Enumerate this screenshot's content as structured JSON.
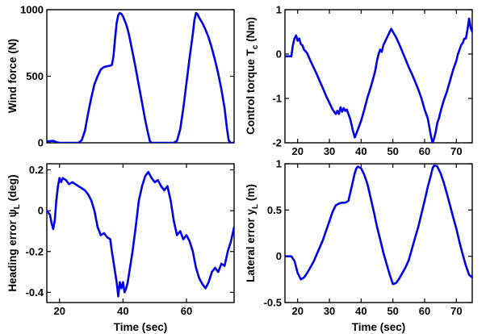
{
  "figure": {
    "line_color": "#0000ee",
    "xlabel": "Time (sec)"
  },
  "chart_data": [
    {
      "type": "line",
      "ylabel": "Wind force (N)",
      "xlim": [
        16,
        75
      ],
      "ylim": [
        0,
        1000
      ],
      "xticks": [],
      "yticks": [
        0,
        500,
        1000
      ],
      "ytick_labels": [
        "0",
        "500",
        "1000"
      ],
      "grid": false,
      "series": [
        {
          "x": [
            16,
            18,
            19,
            20,
            21,
            23,
            25,
            26,
            27,
            28,
            29,
            30,
            31,
            32,
            33,
            34,
            35,
            36,
            36.5,
            37,
            37.5,
            38,
            38.5,
            39,
            39.5,
            40,
            40.5,
            41,
            41.5,
            42,
            43,
            44,
            45,
            46,
            47,
            48,
            48.5,
            49,
            50,
            52,
            54,
            56,
            57,
            58,
            59,
            60,
            61,
            62,
            62.5,
            63,
            63.5,
            64,
            65,
            66,
            67,
            68,
            69,
            70,
            71,
            72,
            72.8,
            73.3,
            73.8,
            74.2,
            74.6,
            75
          ],
          "y": [
            10,
            15,
            5,
            0,
            0,
            0,
            0,
            0,
            20,
            90,
            220,
            340,
            440,
            500,
            550,
            570,
            575,
            580,
            585,
            650,
            780,
            900,
            960,
            975,
            968,
            950,
            920,
            890,
            850,
            800,
            680,
            560,
            430,
            300,
            170,
            60,
            10,
            0,
            0,
            0,
            0,
            0,
            15,
            100,
            260,
            450,
            640,
            820,
            920,
            975,
            965,
            940,
            900,
            850,
            790,
            710,
            620,
            520,
            400,
            260,
            100,
            20,
            0,
            0,
            0,
            0
          ]
        }
      ]
    },
    {
      "type": "line",
      "ylabel": "Control torque T",
      "ylabel_sub": "c",
      "ylabel_suffix": " (Nm)",
      "xlim": [
        16,
        75
      ],
      "ylim": [
        -2,
        1
      ],
      "xticks": [
        20,
        30,
        40,
        50,
        60,
        70
      ],
      "yticks": [
        -2,
        -1,
        0,
        1
      ],
      "ytick_labels": [
        "-2",
        "-1",
        "0",
        "1"
      ],
      "grid": false,
      "series": [
        {
          "x": [
            16,
            17,
            18,
            18.5,
            19,
            19.5,
            20,
            20.5,
            21,
            21.5,
            22,
            23,
            24,
            25,
            26,
            27,
            28,
            29,
            30,
            31,
            32,
            32.5,
            33,
            33.5,
            34,
            34.5,
            35,
            35.5,
            36,
            36.5,
            37,
            37.5,
            38,
            39,
            40,
            41,
            42,
            43,
            44,
            44.5,
            45,
            45.5,
            46,
            46.5,
            47,
            48,
            49,
            49.5,
            50,
            51,
            52,
            53,
            54,
            55,
            56,
            57,
            58,
            59,
            60,
            60.5,
            61,
            61.5,
            62,
            62.5,
            63,
            63.5,
            64,
            64.5,
            65,
            66,
            67,
            68,
            69,
            69.5,
            70,
            70.5,
            71,
            71.5,
            72,
            72.5,
            73,
            73.5,
            74,
            74.5,
            75
          ],
          "y": [
            -0.05,
            -0.05,
            -0.05,
            0.2,
            0.35,
            0.42,
            0.3,
            0.35,
            0.22,
            0.2,
            0.1,
            0.02,
            -0.15,
            -0.3,
            -0.45,
            -0.62,
            -0.78,
            -0.95,
            -1.1,
            -1.25,
            -1.35,
            -1.28,
            -1.35,
            -1.2,
            -1.3,
            -1.22,
            -1.28,
            -1.25,
            -1.35,
            -1.45,
            -1.6,
            -1.75,
            -1.88,
            -1.7,
            -1.5,
            -1.25,
            -0.98,
            -0.75,
            -0.5,
            -0.35,
            -0.15,
            0.0,
            0.1,
            0.05,
            0.2,
            0.35,
            0.5,
            0.57,
            0.5,
            0.38,
            0.22,
            0.05,
            -0.12,
            -0.3,
            -0.45,
            -0.62,
            -0.8,
            -1.0,
            -1.25,
            -1.35,
            -1.45,
            -1.65,
            -1.85,
            -2.0,
            -1.9,
            -1.75,
            -1.55,
            -1.45,
            -1.3,
            -1.05,
            -0.85,
            -0.6,
            -0.35,
            -0.25,
            -0.15,
            0.0,
            0.1,
            0.2,
            0.25,
            0.35,
            0.35,
            0.55,
            0.8,
            0.6,
            0.5
          ]
        }
      ]
    },
    {
      "type": "line",
      "ylabel": "Heading error ψ",
      "ylabel_sub": "L",
      "ylabel_suffix": " (deg)",
      "xlim": [
        16,
        75
      ],
      "ylim": [
        -0.45,
        0.23
      ],
      "xticks": [
        20,
        40,
        60
      ],
      "yticks": [
        -0.4,
        -0.2,
        0,
        0.2
      ],
      "ytick_labels": [
        "-0.4",
        "-0.2",
        "0",
        "0.2"
      ],
      "grid": false,
      "series": [
        {
          "x": [
            16,
            17,
            17.5,
            18,
            18.5,
            19,
            19.5,
            20,
            20.5,
            21,
            22,
            23,
            24,
            25,
            26,
            27,
            28,
            29,
            30,
            31,
            32,
            33,
            34,
            35,
            36,
            36.5,
            37,
            37.5,
            38,
            38.5,
            39,
            39.5,
            40,
            40.5,
            41,
            41.5,
            42,
            43,
            44,
            45,
            46,
            47,
            48,
            49,
            50,
            51,
            52,
            53,
            54,
            55,
            56,
            57,
            58,
            59,
            60,
            61,
            62,
            63,
            64,
            65,
            66,
            67,
            68,
            69,
            70,
            71,
            72,
            73,
            74,
            75
          ],
          "y": [
            0.0,
            -0.02,
            -0.06,
            -0.09,
            -0.05,
            0.05,
            0.12,
            0.16,
            0.14,
            0.16,
            0.15,
            0.13,
            0.14,
            0.13,
            0.12,
            0.11,
            0.1,
            0.08,
            0.05,
            0.0,
            -0.08,
            -0.12,
            -0.11,
            -0.13,
            -0.14,
            -0.2,
            -0.25,
            -0.3,
            -0.35,
            -0.42,
            -0.35,
            -0.38,
            -0.35,
            -0.4,
            -0.38,
            -0.35,
            -0.3,
            -0.2,
            -0.08,
            0.05,
            0.12,
            0.17,
            0.19,
            0.16,
            0.14,
            0.15,
            0.12,
            0.1,
            0.12,
            0.05,
            -0.05,
            -0.12,
            -0.1,
            -0.14,
            -0.12,
            -0.15,
            -0.2,
            -0.28,
            -0.33,
            -0.36,
            -0.38,
            -0.35,
            -0.3,
            -0.28,
            -0.3,
            -0.26,
            -0.27,
            -0.2,
            -0.15,
            -0.08
          ]
        }
      ]
    },
    {
      "type": "line",
      "ylabel": "Lateral error y",
      "ylabel_sub": "L",
      "ylabel_suffix": " (m)",
      "xlim": [
        16,
        75
      ],
      "ylim": [
        -0.5,
        1
      ],
      "xticks": [
        20,
        30,
        40,
        50,
        60,
        70
      ],
      "yticks": [
        -0.5,
        0,
        0.5,
        1
      ],
      "ytick_labels": [
        "-0.5",
        "0",
        "0.5",
        "1"
      ],
      "grid": false,
      "series": [
        {
          "x": [
            16,
            17,
            18,
            19,
            20,
            21,
            22,
            23,
            24,
            25,
            26,
            27,
            28,
            29,
            30,
            31,
            32,
            33,
            34,
            35,
            36,
            37,
            38,
            38.5,
            39,
            40,
            41,
            42,
            43,
            44,
            45,
            46,
            47,
            48,
            49,
            50,
            51,
            52,
            53,
            54,
            55,
            56,
            57,
            58,
            59,
            60,
            61,
            62,
            62.5,
            63,
            63.5,
            64,
            65,
            66,
            67,
            68,
            69,
            70,
            71,
            72,
            73,
            74,
            75
          ],
          "y": [
            0.0,
            0.0,
            0.0,
            -0.05,
            -0.18,
            -0.25,
            -0.23,
            -0.18,
            -0.12,
            -0.06,
            0.02,
            0.1,
            0.18,
            0.28,
            0.38,
            0.48,
            0.55,
            0.57,
            0.58,
            0.58,
            0.6,
            0.75,
            0.9,
            0.95,
            0.97,
            0.95,
            0.88,
            0.78,
            0.63,
            0.48,
            0.32,
            0.18,
            0.04,
            -0.08,
            -0.2,
            -0.3,
            -0.29,
            -0.24,
            -0.18,
            -0.12,
            -0.04,
            0.08,
            0.2,
            0.32,
            0.46,
            0.6,
            0.75,
            0.88,
            0.95,
            0.98,
            0.98,
            0.97,
            0.9,
            0.8,
            0.68,
            0.55,
            0.42,
            0.3,
            0.15,
            0.02,
            -0.1,
            -0.2,
            -0.23
          ]
        }
      ]
    }
  ]
}
